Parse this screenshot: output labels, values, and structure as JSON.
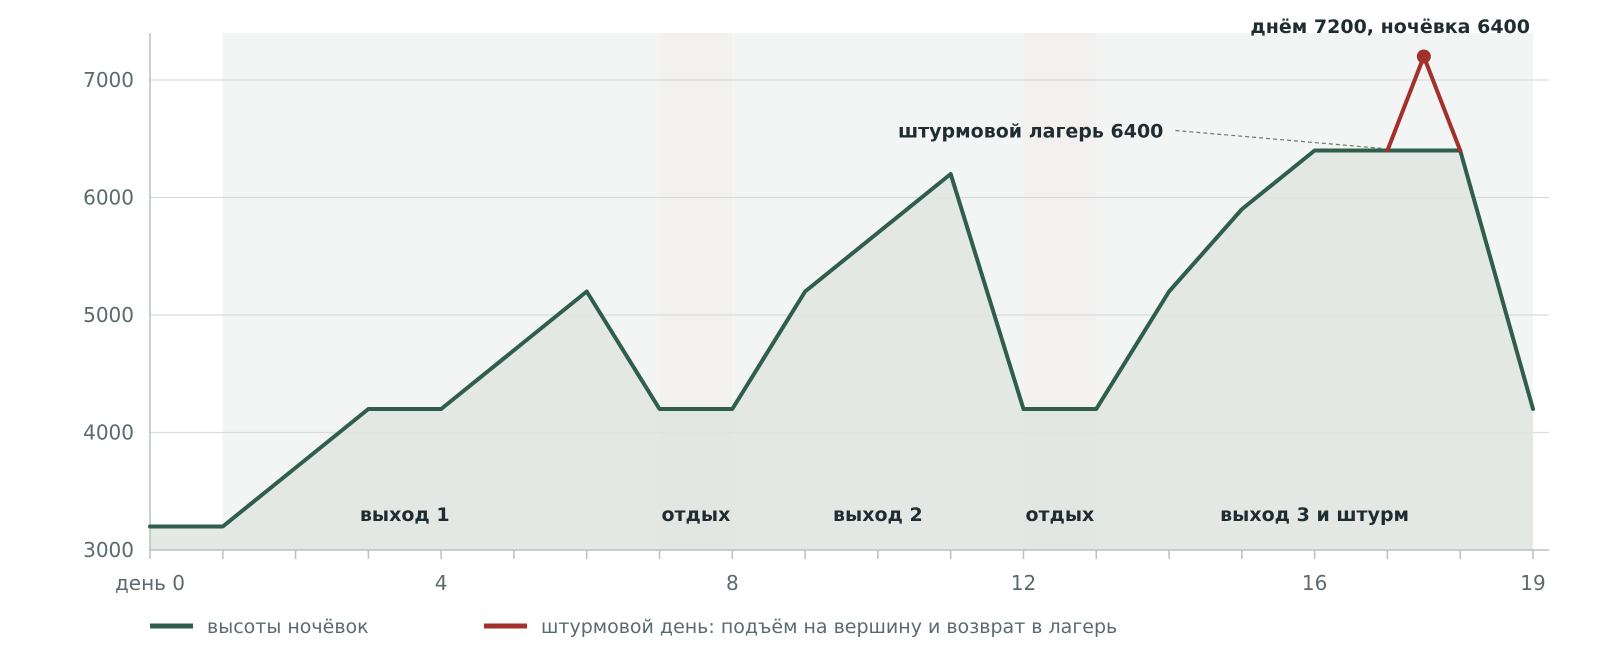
{
  "chart_data": {
    "type": "line",
    "x": [
      0,
      1,
      2,
      3,
      4,
      5,
      6,
      7,
      8,
      9,
      10,
      11,
      12,
      13,
      14,
      15,
      16,
      17,
      18,
      19
    ],
    "x_tick_values": [
      0,
      4,
      8,
      12,
      16,
      19
    ],
    "x_tick_labels": [
      "день 0",
      "4",
      "8",
      "12",
      "16",
      "19"
    ],
    "y_ticks": [
      3000,
      4000,
      5000,
      6000,
      7000
    ],
    "xlim": [
      0,
      19
    ],
    "ylim": [
      3000,
      7400
    ],
    "grid": "horizontal",
    "series": [
      {
        "name": "высоты ночёвок",
        "color": "#2f5e4e",
        "x": [
          0,
          1,
          2,
          3,
          4,
          5,
          6,
          7,
          8,
          9,
          10,
          11,
          12,
          13,
          14,
          15,
          16,
          17,
          18,
          19
        ],
        "values": [
          3200,
          3200,
          3700,
          4200,
          4200,
          4700,
          5200,
          4200,
          4200,
          5200,
          5700,
          6200,
          4200,
          4200,
          5200,
          5900,
          6400,
          6400,
          6400,
          4200
        ]
      },
      {
        "name": "штурмовой день: подъём на вершину и возврат в лагерь",
        "color": "#a3302a",
        "x": [
          17,
          17.5,
          18
        ],
        "values": [
          6400,
          7200,
          6400
        ]
      }
    ],
    "phases": [
      {
        "label": "выход 1",
        "from": 1,
        "to": 7,
        "shade": "#f3f5f4",
        "label_x": 3.5
      },
      {
        "label": "отдых",
        "from": 7,
        "to": 8,
        "shade": "#f3f1f0",
        "label_x": 7.5
      },
      {
        "label": "выход 2",
        "from": 8,
        "to": 12,
        "shade": "#f3f5f4",
        "label_x": 10
      },
      {
        "label": "отдых",
        "from": 12,
        "to": 13,
        "shade": "#f3f1f0",
        "label_x": 12.5
      },
      {
        "label": "выход 3 и штурм",
        "from": 13,
        "to": 19,
        "shade": "#f3f5f4",
        "label_x": 16
      }
    ],
    "annotations": [
      {
        "text": "штурмовой лагерь 6400",
        "x": 17,
        "y": 6400
      },
      {
        "text": "днём 7200, ночёвка 6400",
        "x": 17.5,
        "y": 7200
      }
    ],
    "legend_placement": "bottom-left"
  }
}
